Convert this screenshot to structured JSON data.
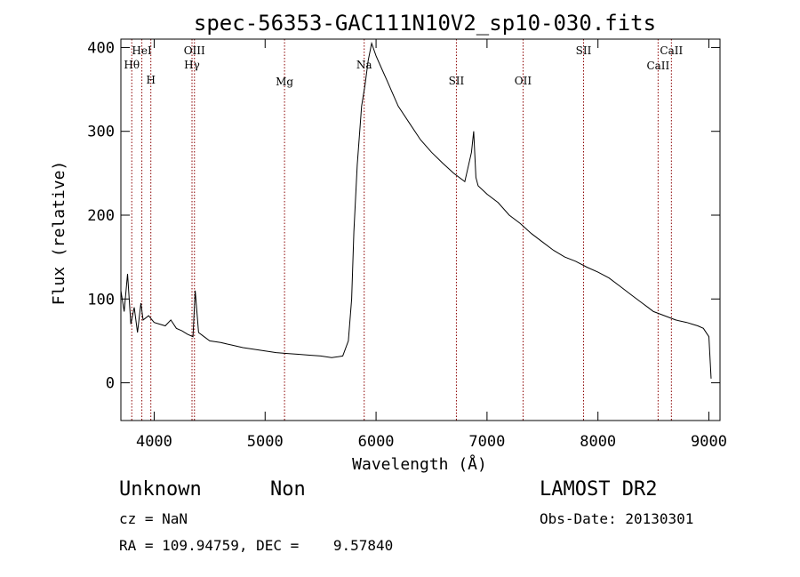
{
  "chart_data": {
    "type": "line",
    "title": "spec-56353-GAC111N10V2_sp10-030.fits",
    "xlabel": "Wavelength (Å)",
    "ylabel": "Flux (relative)",
    "xlim": [
      3700,
      9100
    ],
    "ylim": [
      -45,
      410
    ],
    "xticks": [
      4000,
      5000,
      6000,
      7000,
      8000,
      9000
    ],
    "yticks": [
      0,
      100,
      200,
      300,
      400
    ],
    "grid": false,
    "series": [
      {
        "x": [
          3700,
          3730,
          3760,
          3790,
          3820,
          3850,
          3880,
          3900,
          3950,
          4000,
          4050,
          4100,
          4150,
          4200,
          4250,
          4300,
          4350,
          4370,
          4400,
          4450,
          4500,
          4600,
          4700,
          4800,
          4900,
          5000,
          5100,
          5200,
          5300,
          5400,
          5500,
          5600,
          5700,
          5750,
          5780,
          5800,
          5830,
          5870,
          5900,
          5930,
          5960,
          6000,
          6050,
          6100,
          6150,
          6200,
          6300,
          6400,
          6500,
          6600,
          6700,
          6800,
          6860,
          6880,
          6900,
          6920,
          7000,
          7100,
          7200,
          7300,
          7400,
          7500,
          7600,
          7700,
          7800,
          7900,
          8000,
          8100,
          8200,
          8300,
          8400,
          8450,
          8500,
          8600,
          8700,
          8800,
          8850,
          8900,
          8950,
          9000,
          9020
        ],
        "y": [
          110,
          85,
          130,
          70,
          90,
          60,
          95,
          75,
          80,
          72,
          70,
          68,
          75,
          65,
          62,
          58,
          55,
          110,
          60,
          55,
          50,
          48,
          45,
          42,
          40,
          38,
          36,
          35,
          34,
          33,
          32,
          30,
          32,
          50,
          100,
          180,
          260,
          330,
          355,
          385,
          405,
          390,
          375,
          360,
          345,
          330,
          310,
          290,
          275,
          262,
          250,
          240,
          275,
          300,
          245,
          235,
          225,
          215,
          200,
          190,
          178,
          168,
          158,
          150,
          145,
          138,
          132,
          125,
          115,
          105,
          95,
          90,
          85,
          80,
          75,
          72,
          70,
          68,
          65,
          55,
          5
        ]
      }
    ],
    "lines": [
      {
        "label": "Hθ",
        "x": 3798
      },
      {
        "label": "HeI",
        "x": 3889
      },
      {
        "label": "H",
        "x": 3970
      },
      {
        "label": "Hγ",
        "x": 4341
      },
      {
        "label": "OIII",
        "x": 4363
      },
      {
        "label": "Mg",
        "x": 5175
      },
      {
        "label": "Na",
        "x": 5893
      },
      {
        "label": "SII",
        "x": 6724
      },
      {
        "label": "OII",
        "x": 7325
      },
      {
        "label": "SII",
        "x": 7870
      },
      {
        "label": "CaII",
        "x": 8542
      },
      {
        "label": "CaII",
        "x": 8662
      }
    ]
  },
  "info": {
    "object_class": "Unknown",
    "subclass": "Non",
    "survey": "LAMOST DR2",
    "redshift": "cz = NaN",
    "obs_date": "Obs-Date: 20130301",
    "coords": "RA = 109.94759, DEC =    9.57840"
  },
  "colors": {
    "spectrum": "#000000",
    "line_marker": "#8b0000"
  }
}
